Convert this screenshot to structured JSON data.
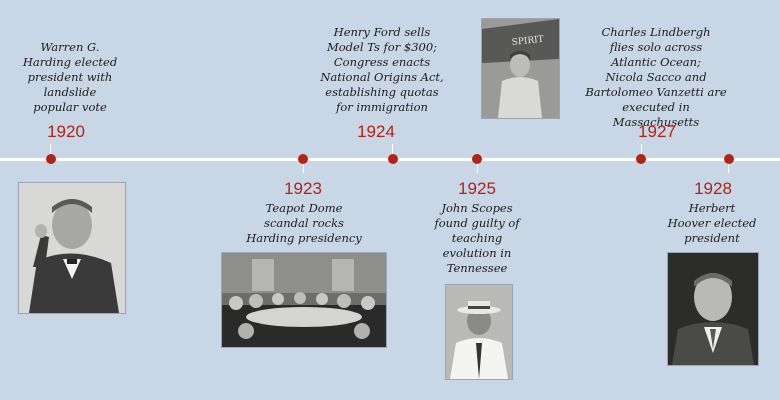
{
  "events": [
    {
      "year": "1920",
      "text": "Warren G.\nHarding elected\npresident with\nlandslide\npopular vote",
      "photo": "portrait of Warren G. Harding"
    },
    {
      "year": "1923",
      "text": "Teapot Dome\nscandal rocks\nHarding presidency",
      "photo": "Senate hearing room"
    },
    {
      "year": "1924",
      "text": "Henry Ford sells\nModel Ts for $300;\nCongress enacts\nNational Origins Act,\nestablishing quotas\nfor immigration"
    },
    {
      "year": "1925",
      "text": "John Scopes\nfound guilty of\nteaching\nevolution in\nTennessee",
      "photo": "portrait of John Scopes"
    },
    {
      "year": "1927",
      "text": "Charles Lindbergh\nflies solo across\nAtlantic Ocean;\nNicola Sacco and\nBartolomeo Vanzetti are\nexecuted in Massachusetts",
      "photo": "Charles Lindbergh with airplane"
    },
    {
      "year": "1928",
      "text": "Herbert\nHoover elected\npresident",
      "photo": "portrait of Herbert Hoover"
    }
  ],
  "colors": {
    "background": "#c8d6e5",
    "accent": "#b02418",
    "line": "#ffffff"
  }
}
